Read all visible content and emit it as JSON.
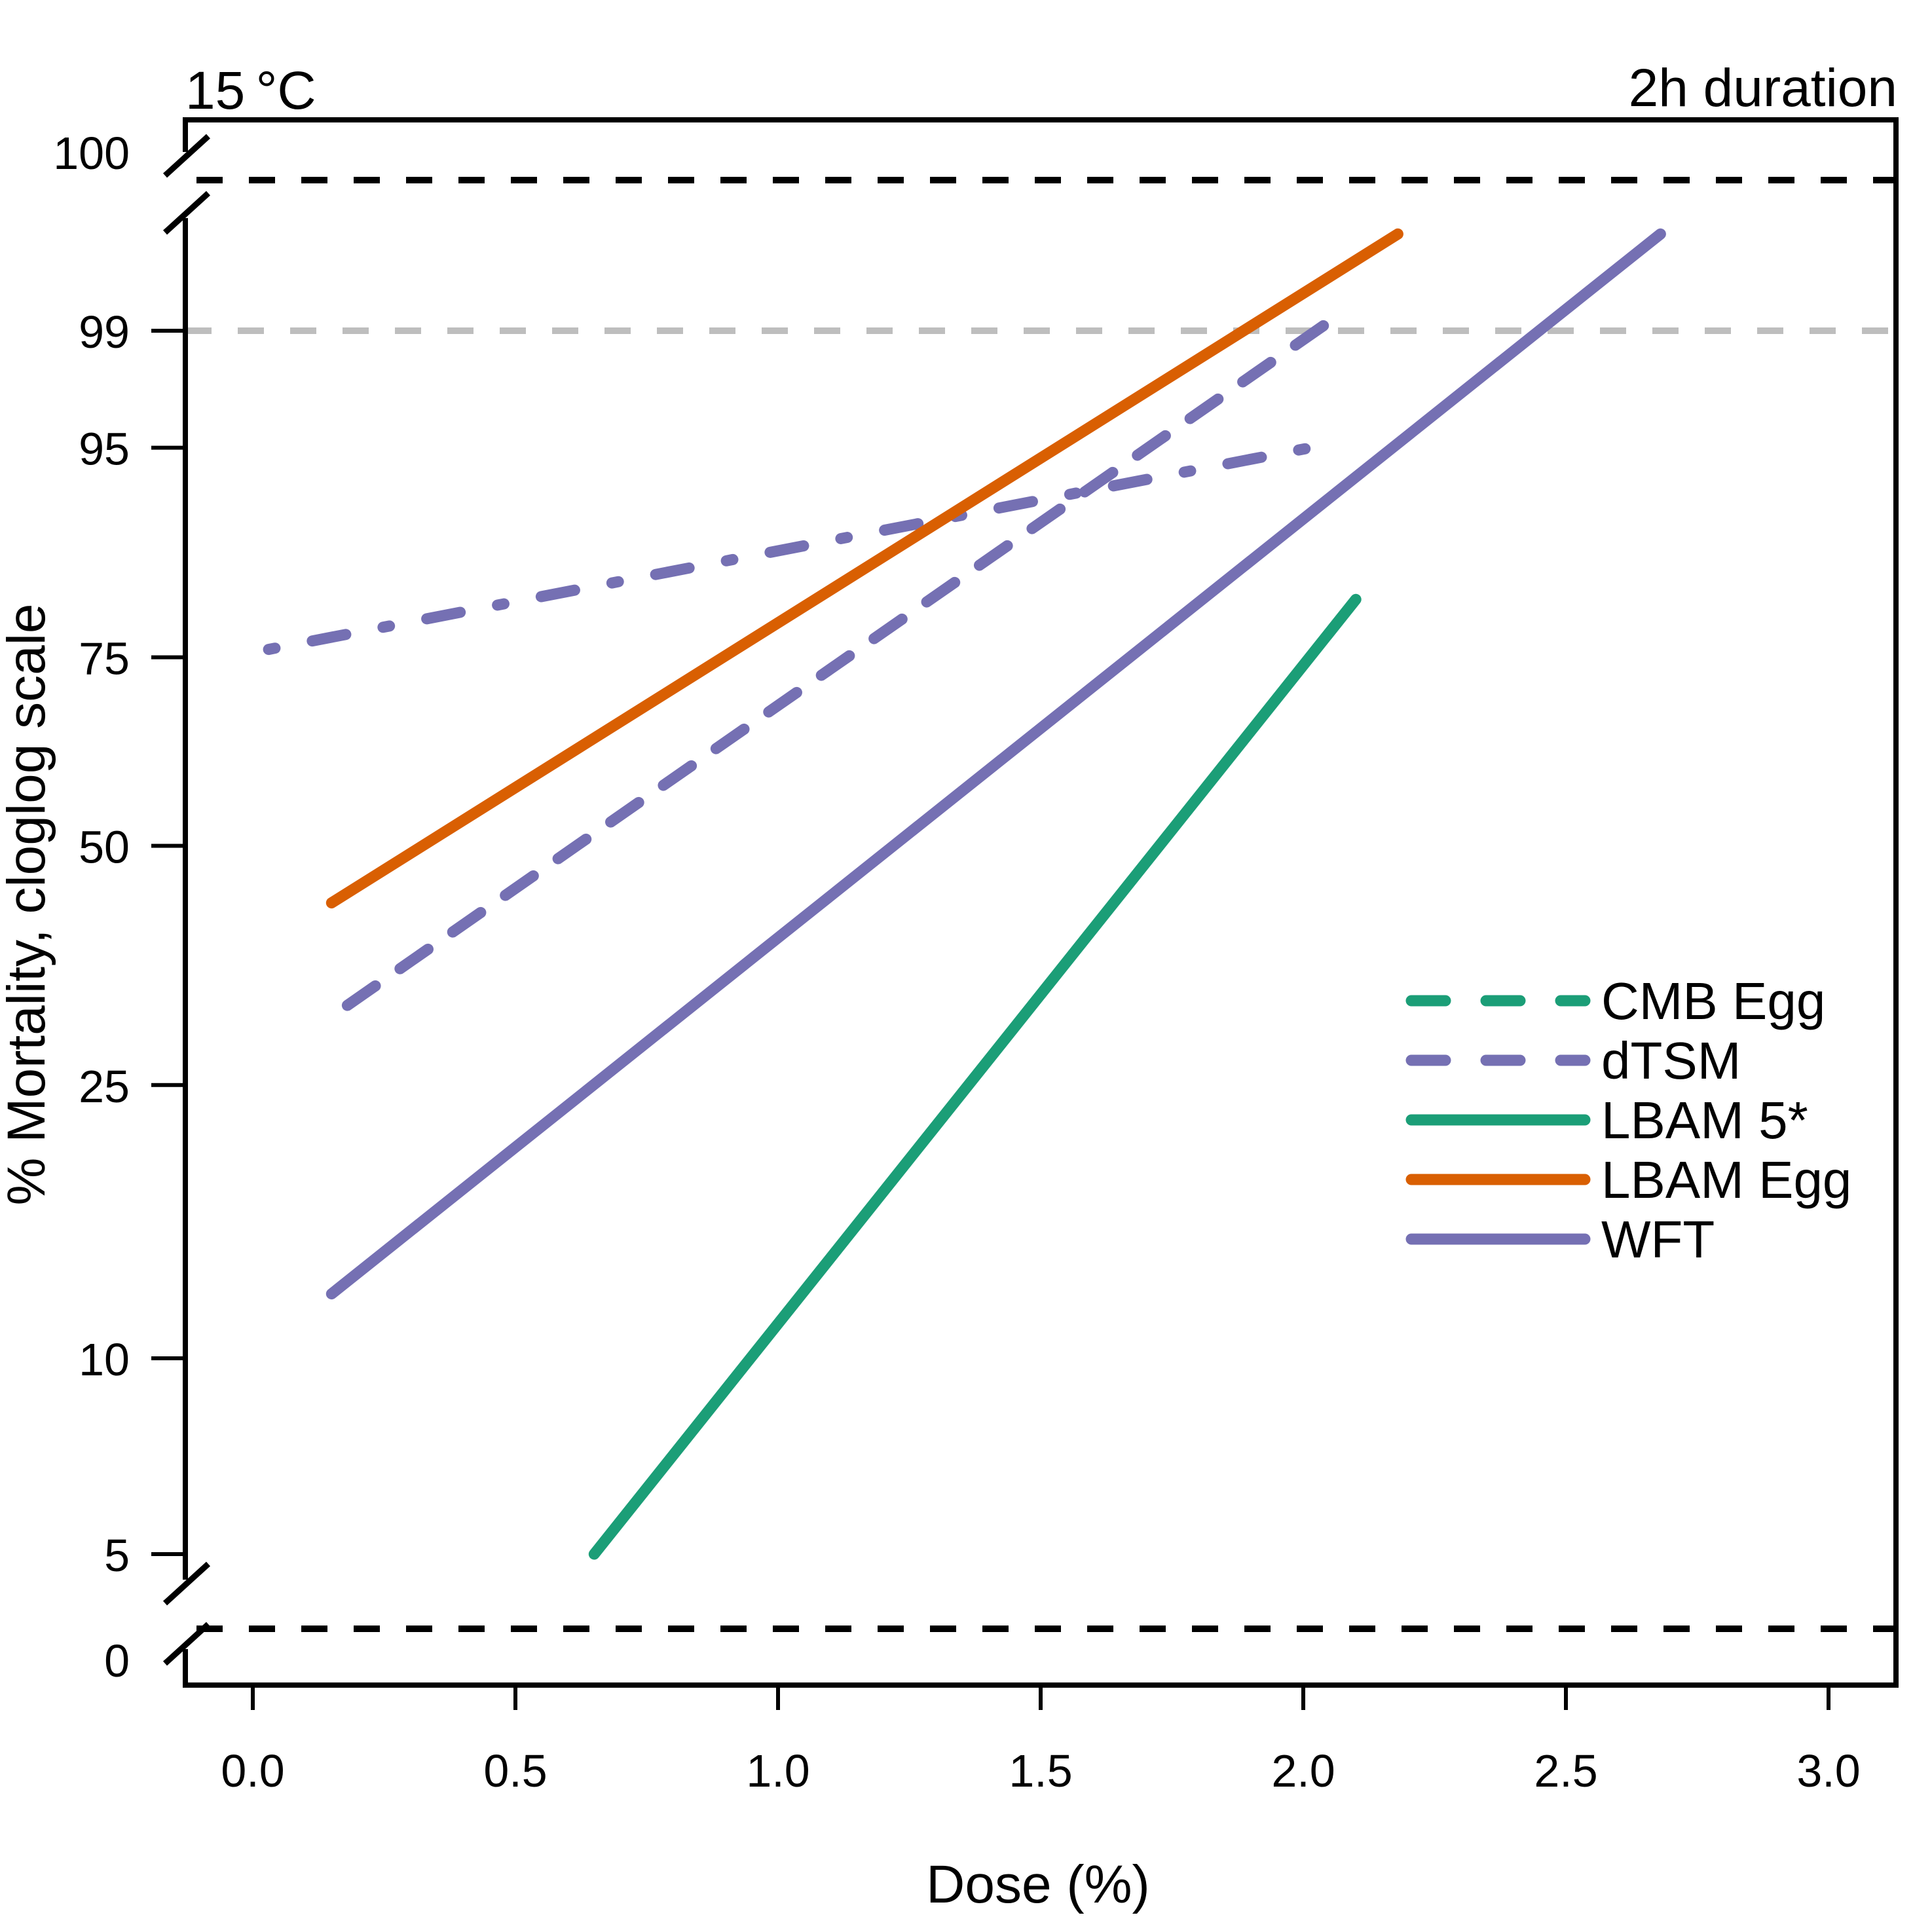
{
  "chart_data": {
    "type": "line",
    "title_left": "15 °C",
    "title_right": "2h duration",
    "xlabel": "Dose (%)",
    "ylabel": "% Mortality, cloglog scale",
    "xlim": [
      -0.12,
      3.12
    ],
    "x_ticks": [
      0.0,
      0.5,
      1.0,
      1.5,
      2.0,
      2.5,
      3.0
    ],
    "x_tick_labels": [
      "0.0",
      "0.5",
      "1.0",
      "1.5",
      "2.0",
      "2.5",
      "3.0"
    ],
    "y_scale": "cloglog",
    "y_ticks": [
      5,
      10,
      25,
      50,
      75,
      95,
      99
    ],
    "y_tick_labels": [
      "5",
      "10",
      "25",
      "50",
      "75",
      "95",
      "99"
    ],
    "y_break_labels": {
      "top": "100",
      "bottom": "0"
    },
    "reference_lines": [
      {
        "y": 99,
        "color": "#bebebe",
        "style": "dashed"
      },
      {
        "y": 100,
        "color": "#000000",
        "style": "dashed",
        "position": "upper break"
      },
      {
        "y": 0,
        "color": "#000000",
        "style": "dashed",
        "position": "lower break"
      }
    ],
    "series": [
      {
        "name": "dTSM",
        "color": "#7570b3",
        "style": "dashed",
        "x": [
          0.18,
          2.08
        ],
        "y": [
          32,
          99.3
        ]
      },
      {
        "name": "dTSM",
        "color": "#7570b3",
        "style": "dotdash",
        "x": [
          0.03,
          2.05
        ],
        "y": [
          76,
          95.2
        ]
      },
      {
        "name": "LBAM 5*",
        "color": "#1b9e77",
        "style": "solid",
        "x": [
          0.65,
          2.1
        ],
        "y": [
          5,
          82
        ]
      },
      {
        "name": "LBAM Egg",
        "color": "#d95f02",
        "style": "solid",
        "x": [
          0.15,
          2.18
        ],
        "y": [
          43,
          99.86
        ]
      },
      {
        "name": "WFT",
        "color": "#7570b3",
        "style": "solid",
        "x": [
          0.15,
          2.68
        ],
        "y": [
          12.5,
          99.86
        ]
      }
    ],
    "legend": {
      "position": "right",
      "items": [
        {
          "label": "CMB Egg",
          "color": "#1b9e77",
          "style": "dashed"
        },
        {
          "label": "dTSM",
          "color": "#7570b3",
          "style": "dashed"
        },
        {
          "label": "LBAM 5*",
          "color": "#1b9e77",
          "style": "solid"
        },
        {
          "label": "LBAM Egg",
          "color": "#d95f02",
          "style": "solid"
        },
        {
          "label": "WFT",
          "color": "#7570b3",
          "style": "solid"
        }
      ]
    }
  }
}
